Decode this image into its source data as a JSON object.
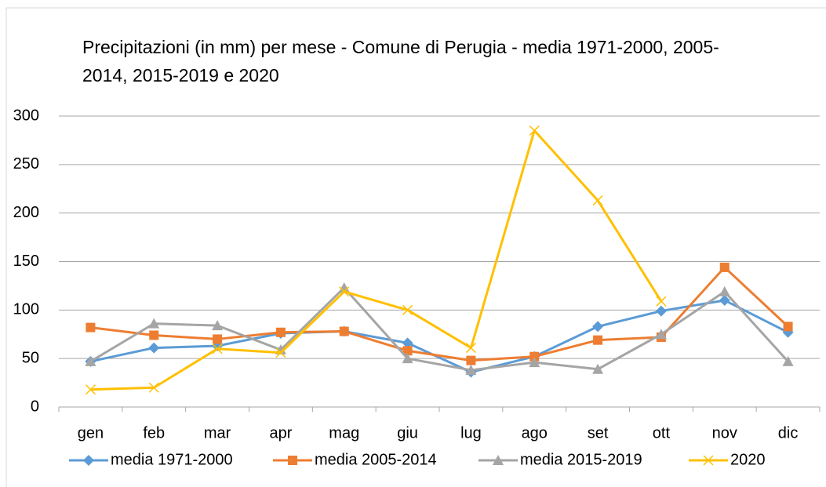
{
  "chart_data": {
    "type": "line",
    "title": "Precipitazioni (in mm) per mese - Comune di Perugia - media 1971-2000, 2005-2014, 2015-2019 e 2020",
    "categories": [
      "gen",
      "feb",
      "mar",
      "apr",
      "mag",
      "giu",
      "lug",
      "ago",
      "set",
      "ott",
      "nov",
      "dic"
    ],
    "series": [
      {
        "name": "media 1971-2000",
        "color": "#5b9bd5",
        "marker": "diamond",
        "values": [
          47,
          61,
          63,
          76,
          78,
          66,
          36,
          52,
          83,
          99,
          110,
          77
        ]
      },
      {
        "name": "media 2005-2014",
        "color": "#ed7d31",
        "marker": "square",
        "values": [
          82,
          74,
          70,
          77,
          78,
          58,
          48,
          52,
          69,
          72,
          144,
          83
        ]
      },
      {
        "name": "media 2015-2019",
        "color": "#a5a5a5",
        "marker": "triangle",
        "values": [
          47,
          86,
          84,
          59,
          123,
          50,
          38,
          46,
          39,
          75,
          119,
          47
        ]
      },
      {
        "name": "2020",
        "color": "#ffc000",
        "marker": "x",
        "values": [
          18,
          20,
          60,
          56,
          119,
          100,
          61,
          285,
          213,
          109,
          null,
          null
        ]
      }
    ],
    "ylim": [
      0,
      300
    ],
    "yticks": [
      0,
      50,
      100,
      150,
      200,
      250,
      300
    ],
    "grid": true,
    "legend": "bottom"
  }
}
